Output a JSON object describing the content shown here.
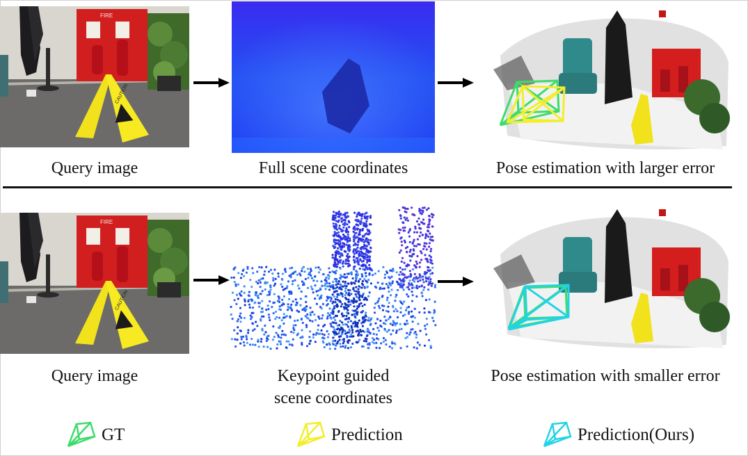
{
  "top_row": {
    "query_caption": "Query image",
    "coords_caption": "Full scene coordinates",
    "pose_caption": "Pose estimation with larger error"
  },
  "bottom_row": {
    "query_caption": "Query image",
    "coords_caption_line1": "Keypoint guided",
    "coords_caption_line2": "scene coordinates",
    "pose_caption": "Pose estimation with smaller error"
  },
  "query_image": {
    "sign_fire_label": "FIRE",
    "sign_caution_label": "CAUTION"
  },
  "legend": [
    {
      "label": "GT",
      "color": "#3ddc6a"
    },
    {
      "label": "Prediction",
      "color": "#f2ee2c"
    },
    {
      "label": "Prediction(Ours)",
      "color": "#22d3e6"
    }
  ],
  "colors": {
    "arrow": "#000000",
    "divider": "#111111",
    "coords_blue": "#1f3cf0"
  }
}
